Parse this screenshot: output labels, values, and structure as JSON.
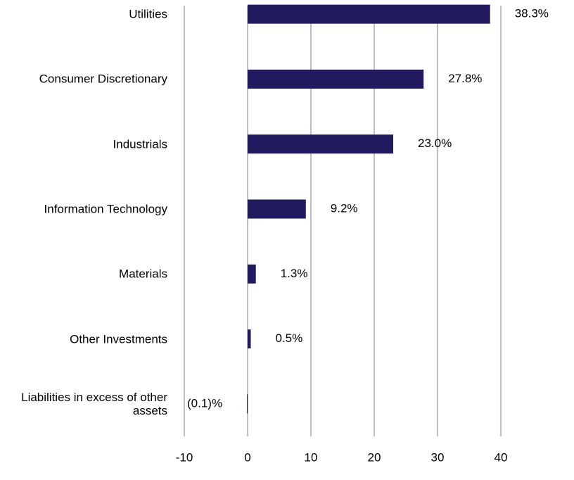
{
  "chart_data": {
    "type": "bar",
    "orientation": "horizontal",
    "categories": [
      "Utilities",
      "Consumer Discretionary",
      "Industrials",
      "Information Technology",
      "Materials",
      "Other Investments",
      "Liabilities in excess of other assets"
    ],
    "values": [
      38.3,
      27.8,
      23.0,
      9.2,
      1.3,
      0.5,
      -0.1
    ],
    "value_labels": [
      "38.3%",
      "27.8%",
      "23.0%",
      "9.2%",
      "1.3%",
      "0.5%",
      "(0.1)%"
    ],
    "color": "#211a5f",
    "xlim": [
      -10,
      40
    ],
    "xticks": [
      -10,
      0,
      10,
      20,
      30,
      40
    ],
    "grid": true
  }
}
